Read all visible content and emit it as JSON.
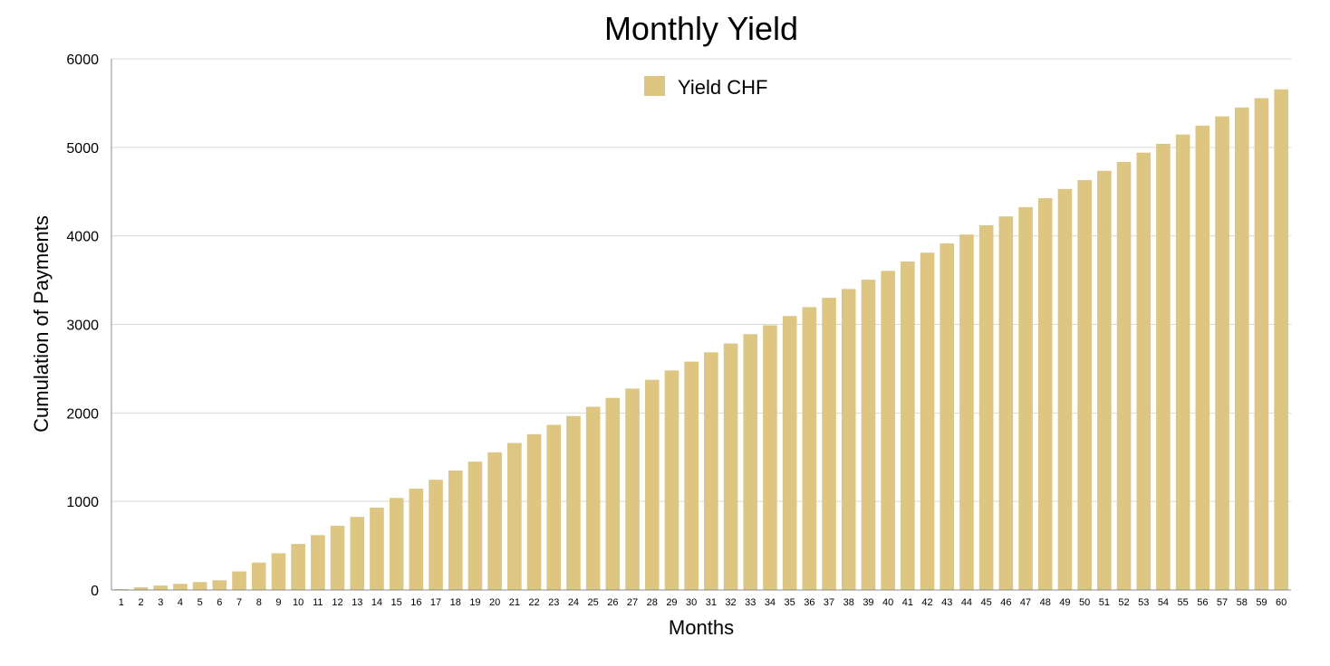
{
  "chart_data": {
    "type": "bar",
    "title": "Monthly Yield",
    "xlabel": "Months",
    "ylabel": "Cumulation of Payments",
    "ylim": [
      0,
      6000
    ],
    "yticks": [
      "0",
      "1000",
      "2000",
      "3000",
      "4000",
      "5000",
      "6000"
    ],
    "grid": true,
    "legend_position": "top-center",
    "bar_color": "#dcc682",
    "categories": [
      "1",
      "2",
      "3",
      "4",
      "5",
      "6",
      "7",
      "8",
      "9",
      "10",
      "11",
      "12",
      "13",
      "14",
      "15",
      "16",
      "17",
      "18",
      "19",
      "20",
      "21",
      "22",
      "23",
      "24",
      "25",
      "26",
      "27",
      "28",
      "29",
      "30",
      "31",
      "32",
      "33",
      "34",
      "35",
      "36",
      "37",
      "38",
      "39",
      "40",
      "41",
      "42",
      "43",
      "44",
      "45",
      "46",
      "47",
      "48",
      "49",
      "50",
      "51",
      "52",
      "53",
      "54",
      "55",
      "56",
      "57",
      "58",
      "59",
      "60"
    ],
    "series": [
      {
        "name": "Yield CHF",
        "values": [
          10,
          30,
          50,
          70,
          90,
          110,
          210,
          310,
          415,
          520,
          620,
          725,
          825,
          930,
          1040,
          1145,
          1245,
          1350,
          1450,
          1555,
          1660,
          1760,
          1865,
          1965,
          2070,
          2170,
          2275,
          2375,
          2480,
          2580,
          2685,
          2785,
          2890,
          2990,
          3095,
          3195,
          3300,
          3400,
          3505,
          3605,
          3710,
          3810,
          3915,
          4015,
          4120,
          4220,
          4325,
          4425,
          4530,
          4630,
          4735,
          4835,
          4940,
          5040,
          5145,
          5245,
          5350,
          5450,
          5555,
          5655
        ]
      }
    ]
  }
}
